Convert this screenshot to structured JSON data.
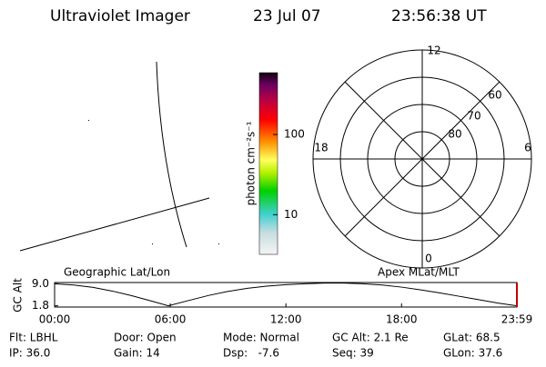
{
  "header": {
    "title": "Ultraviolet Imager",
    "date": "23 Jul 07",
    "time": "23:56:38 UT"
  },
  "colorbar": {
    "label": "photon cm⁻²s⁻¹",
    "log": true,
    "lim": [
      3.2,
      590
    ],
    "ticks": [
      10,
      100
    ]
  },
  "polar": {
    "lat_labels": [
      60,
      70,
      80
    ],
    "mlt_labels": {
      "top": 12,
      "right": 6,
      "bottom": 0,
      "left": 18
    }
  },
  "altitude_plot": {
    "left_title": "Geographic Lat/Lon",
    "right_title": "Apex MLat/MLT",
    "ylabel": "GC Alt",
    "ylim": [
      1.4,
      9.4
    ],
    "yticks": [
      {
        "value": 9.0,
        "label": "9.0"
      },
      {
        "value": 1.8,
        "label": "1.8"
      }
    ],
    "xlim": [
      0,
      23.983
    ],
    "xticks": [
      {
        "value": 0,
        "label": "00:00"
      },
      {
        "value": 6,
        "label": "06:00"
      },
      {
        "value": 12,
        "label": "12:00"
      },
      {
        "value": 18,
        "label": "18:00"
      },
      {
        "value": 23.983,
        "label": "23:59"
      }
    ],
    "x": [
      0,
      1,
      2,
      3,
      4,
      5,
      5.9,
      7,
      8,
      9,
      10,
      11,
      12,
      13,
      14,
      15,
      16,
      17,
      18,
      19,
      20,
      21,
      22,
      23,
      23.983
    ],
    "values": [
      9.0,
      8.6,
      7.8,
      6.6,
      5.1,
      3.4,
      1.8,
      3.6,
      5.2,
      6.5,
      7.5,
      8.2,
      8.7,
      9.0,
      9.2,
      9.2,
      9.0,
      8.6,
      7.9,
      7.0,
      6.0,
      4.9,
      3.8,
      2.7,
      1.8
    ],
    "color": "#000000",
    "marker_color": "#c00000"
  },
  "footer": {
    "rows": [
      [
        "Flt: LBHL",
        "Door: Open",
        "Mode: Normal",
        "GC Alt: 2.1 Re",
        "GLat: 68.5"
      ],
      [
        "IP: 36.0",
        "Gain: 14",
        "Dsp:   -7.6",
        "Seq: 39",
        "GLon: 37.6"
      ]
    ]
  }
}
